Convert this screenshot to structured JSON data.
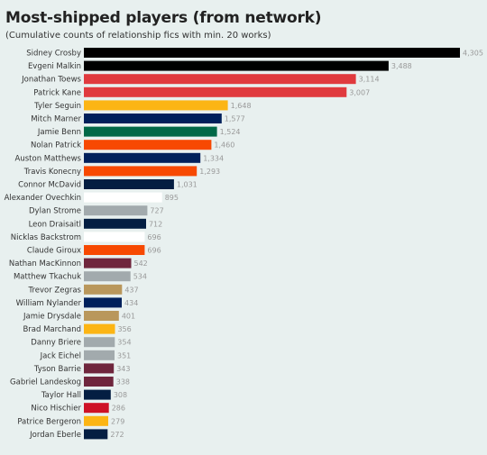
{
  "title": "Most-shipped players (from network)",
  "subtitle": "(Cumulative counts of relationship fics with min. 20 works)",
  "chart_data": {
    "type": "bar",
    "orientation": "horizontal",
    "title": "Most-shipped players (from network)",
    "subtitle": "(Cumulative counts of relationship fics with min. 20 works)",
    "categories": [
      "Sidney Crosby",
      "Evgeni Malkin",
      "Jonathan Toews",
      "Patrick Kane",
      "Tyler Seguin",
      "Mitch Marner",
      "Jamie Benn",
      "Nolan Patrick",
      "Auston Matthews",
      "Travis Konecny",
      "Connor McDavid",
      "Alexander Ovechkin",
      "Dylan Strome",
      "Leon Draisaitl",
      "Nicklas Backstrom",
      "Claude Giroux",
      "Nathan MacKinnon",
      "Matthew Tkachuk",
      "Trevor Zegras",
      "William Nylander",
      "Jamie Drysdale",
      "Brad Marchand",
      "Danny Briere",
      "Jack Eichel",
      "Tyson Barrie",
      "Gabriel Landeskog",
      "Taylor Hall",
      "Nico Hischier",
      "Patrice Bergeron",
      "Jordan Eberle"
    ],
    "values": [
      4305,
      3488,
      3114,
      3007,
      1648,
      1577,
      1524,
      1460,
      1334,
      1293,
      1031,
      895,
      727,
      712,
      696,
      696,
      542,
      534,
      437,
      434,
      401,
      356,
      354,
      351,
      343,
      338,
      308,
      286,
      279,
      272
    ],
    "value_labels": [
      "4,305",
      "3,488",
      "3,114",
      "3,007",
      "1,648",
      "1,577",
      "1,524",
      "1,460",
      "1,334",
      "1,293",
      "1,031",
      "895",
      "727",
      "712",
      "696",
      "696",
      "542",
      "534",
      "437",
      "434",
      "401",
      "356",
      "354",
      "351",
      "343",
      "338",
      "308",
      "286",
      "279",
      "272"
    ],
    "colors": [
      "#000000",
      "#000000",
      "#e03a3e",
      "#e03a3e",
      "#fcb514",
      "#00205b",
      "#006847",
      "#f74902",
      "#00205b",
      "#f74902",
      "#041e42",
      "#ffffff",
      "#a2aaad",
      "#041e42",
      "#ffffff",
      "#f74902",
      "#6f263d",
      "#a2aaad",
      "#b9975b",
      "#00205b",
      "#b9975b",
      "#fcb514",
      "#a2aaad",
      "#a2aaad",
      "#6f263d",
      "#6f263d",
      "#041e42",
      "#ce1126",
      "#fcb514",
      "#041e42"
    ],
    "xlim": [
      0,
      4305
    ],
    "xlabel": "",
    "ylabel": "",
    "grid": false,
    "legend": "none"
  }
}
